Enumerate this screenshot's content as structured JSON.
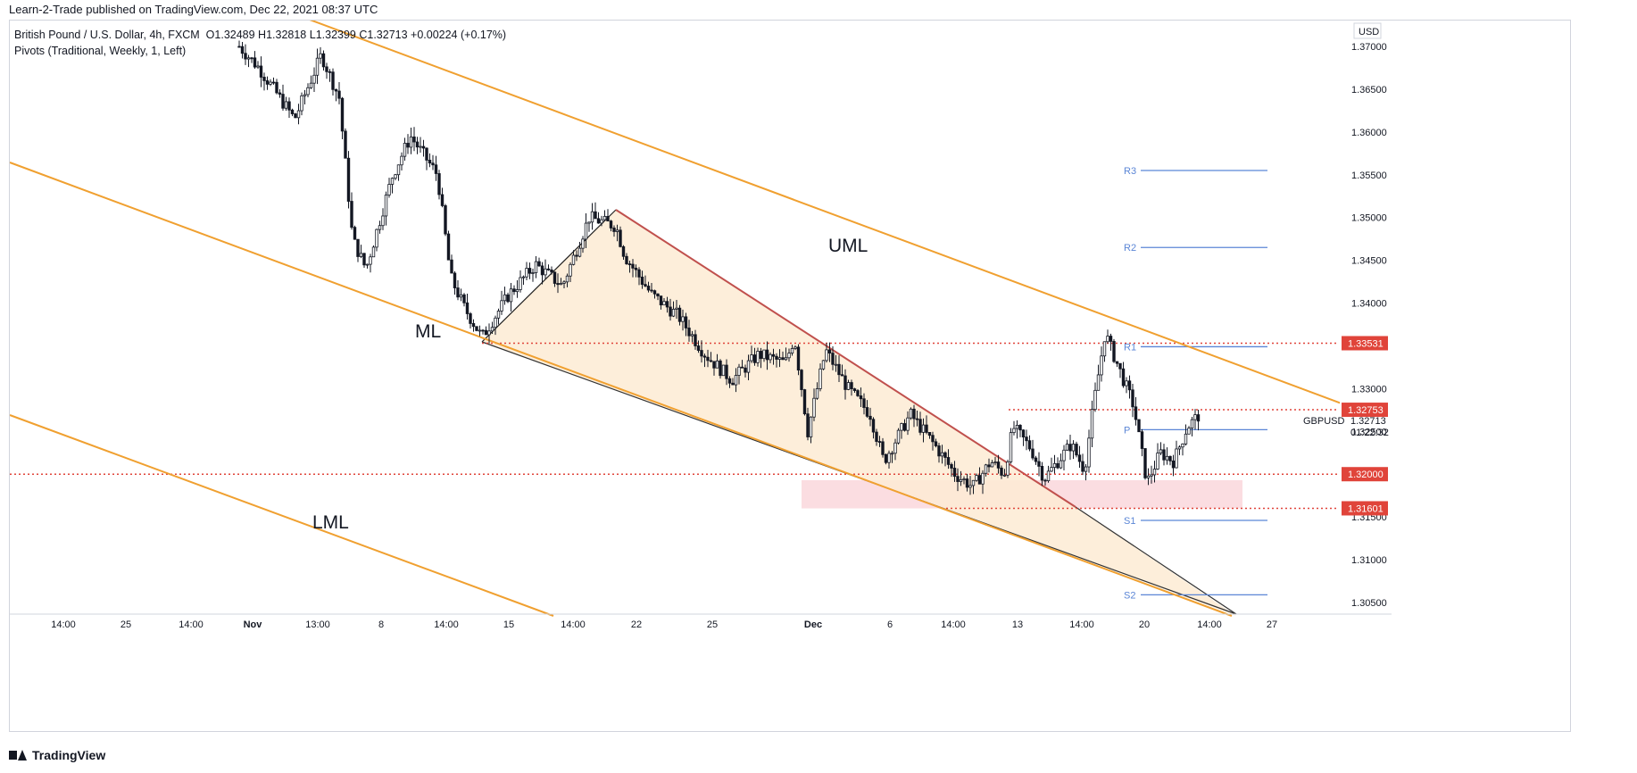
{
  "header": {
    "published_by": "Learn-2-Trade published on TradingView.com, Dec 22, 2021 08:37 UTC"
  },
  "legend": {
    "instrument": "British Pound / U.S. Dollar, 4h, FXCM",
    "ohlc": "O1.32489  H1.32818  L1.32399  C1.32713  +0.00224 (+0.17%)",
    "indicator": "Pivots (Traditional, Weekly, 1, Left)"
  },
  "footer": {
    "brand": "TradingView"
  },
  "chart_data": {
    "type": "candlestick",
    "symbol": "GBPUSD",
    "currency": "USD",
    "timeframe": "4h",
    "y_axis": {
      "range": [
        1.3044,
        1.3722
      ],
      "ticks": [
        "1.37000",
        "1.36500",
        "1.36000",
        "1.35500",
        "1.35000",
        "1.34500",
        "1.34000",
        "1.33500",
        "1.33000",
        "1.32500",
        "1.32000",
        "1.31500",
        "1.31000",
        "1.30500"
      ]
    },
    "x_axis": {
      "ticks": [
        "14:00",
        "25",
        "14:00",
        "Nov",
        "13:00",
        "8",
        "14:00",
        "15",
        "14:00",
        "22",
        "25",
        "Dec",
        "6",
        "14:00",
        "13",
        "14:00",
        "20",
        "14:00",
        "27"
      ]
    },
    "price_labels": {
      "level_1": "1.33531",
      "level_2": "1.32753",
      "current": "1.32713",
      "countdown": "01:22:32",
      "level_3": "1.32000",
      "level_4": "1.31601"
    },
    "pivots": {
      "R3": 1.3555,
      "R2": 1.3465,
      "R1": 1.3349,
      "P": 1.3252,
      "S1": 1.3146,
      "S2": 1.3059
    },
    "pivot_labels": [
      "R3",
      "R2",
      "R1",
      "P",
      "S1",
      "S2"
    ],
    "channel_labels": {
      "upper": "UML",
      "median": "ML",
      "lower": "LML"
    },
    "horizontal_levels": [
      1.33531,
      1.32753,
      1.32,
      1.31601
    ],
    "demand_zone": [
      1.316,
      1.3193
    ],
    "colors": {
      "bull": "#ffffff",
      "bear": "#131722",
      "channel": "#f0a030",
      "wedge_fill": "#fdebd3",
      "upper_wedge_line": "#c0504d",
      "level_red": "#e0443a",
      "pivot_blue": "#5b86d6",
      "zone_fill": "#fbdde1"
    }
  }
}
